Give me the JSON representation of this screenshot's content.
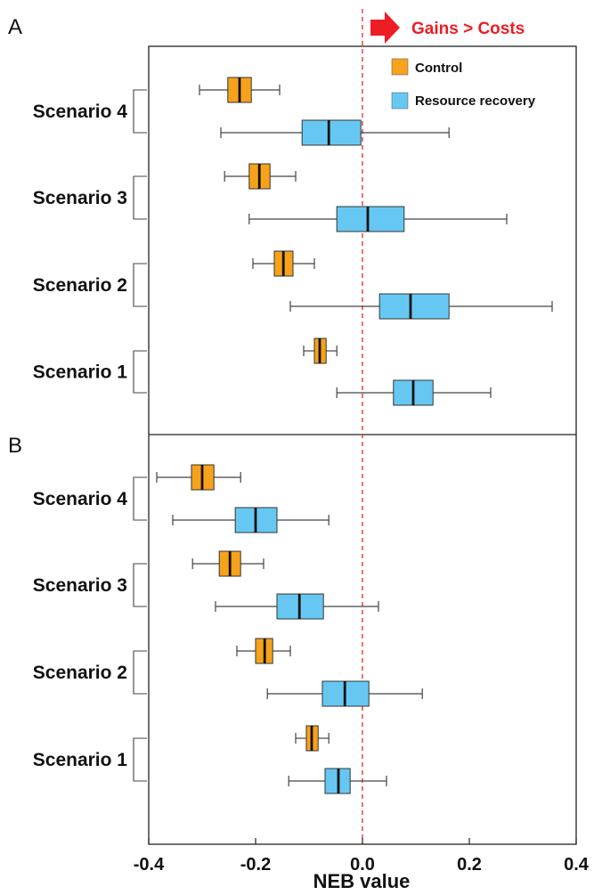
{
  "chart_data": {
    "type": "boxplot",
    "orientation": "horizontal",
    "xlabel": "NEB value",
    "xlim": [
      -0.4,
      0.4
    ],
    "xticks": [
      "-0.4",
      "-0.2",
      "0.0",
      "0.2",
      "0.4"
    ],
    "reference_line": {
      "x": 0.0,
      "style": "dashed",
      "color": "#e8373d"
    },
    "annotation": "Gains > Costs",
    "legend": {
      "placement": "top-right",
      "items": [
        {
          "label": "Control",
          "color": "#f7a21b"
        },
        {
          "label": "Resource recovery",
          "color": "#66c8f2"
        }
      ]
    },
    "panels": [
      {
        "letter": "A",
        "scenarios": [
          {
            "label": "Scenario 4",
            "control": {
              "min": -0.305,
              "q1": -0.252,
              "median": -0.23,
              "q3": -0.208,
              "max": -0.155
            },
            "resource_recovery": {
              "min": -0.265,
              "q1": -0.113,
              "median": -0.063,
              "q3": -0.003,
              "max": 0.162
            }
          },
          {
            "label": "Scenario 3",
            "control": {
              "min": -0.258,
              "q1": -0.212,
              "median": -0.193,
              "q3": -0.173,
              "max": -0.125
            },
            "resource_recovery": {
              "min": -0.212,
              "q1": -0.048,
              "median": 0.01,
              "q3": 0.078,
              "max": 0.27
            }
          },
          {
            "label": "Scenario 2",
            "control": {
              "min": -0.205,
              "q1": -0.165,
              "median": -0.148,
              "q3": -0.13,
              "max": -0.09
            },
            "resource_recovery": {
              "min": -0.135,
              "q1": 0.032,
              "median": 0.09,
              "q3": 0.162,
              "max": 0.355
            }
          },
          {
            "label": "Scenario 1",
            "control": {
              "min": -0.11,
              "q1": -0.09,
              "median": -0.08,
              "q3": -0.068,
              "max": -0.048
            },
            "resource_recovery": {
              "min": -0.048,
              "q1": 0.058,
              "median": 0.095,
              "q3": 0.132,
              "max": 0.24
            }
          }
        ]
      },
      {
        "letter": "B",
        "scenarios": [
          {
            "label": "Scenario 4",
            "control": {
              "min": -0.385,
              "q1": -0.32,
              "median": -0.3,
              "q3": -0.278,
              "max": -0.228
            },
            "resource_recovery": {
              "min": -0.355,
              "q1": -0.238,
              "median": -0.2,
              "q3": -0.16,
              "max": -0.063
            }
          },
          {
            "label": "Scenario 3",
            "control": {
              "min": -0.318,
              "q1": -0.268,
              "median": -0.248,
              "q3": -0.228,
              "max": -0.185
            },
            "resource_recovery": {
              "min": -0.275,
              "q1": -0.16,
              "median": -0.118,
              "q3": -0.073,
              "max": 0.03
            }
          },
          {
            "label": "Scenario 2",
            "control": {
              "min": -0.235,
              "q1": -0.2,
              "median": -0.183,
              "q3": -0.168,
              "max": -0.135
            },
            "resource_recovery": {
              "min": -0.178,
              "q1": -0.075,
              "median": -0.033,
              "q3": 0.012,
              "max": 0.112
            }
          },
          {
            "label": "Scenario 1",
            "control": {
              "min": -0.125,
              "q1": -0.105,
              "median": -0.095,
              "q3": -0.083,
              "max": -0.063
            },
            "resource_recovery": {
              "min": -0.138,
              "q1": -0.07,
              "median": -0.045,
              "q3": -0.023,
              "max": 0.045
            }
          }
        ]
      }
    ]
  }
}
